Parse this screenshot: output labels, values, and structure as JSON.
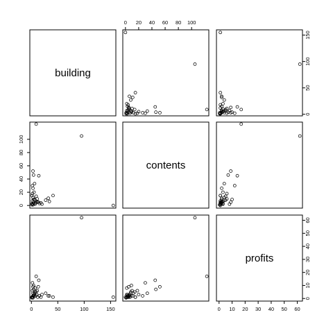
{
  "chart_data": {
    "type": "scatter",
    "variables": [
      "building",
      "contents",
      "profits"
    ],
    "ranges": {
      "building": [
        -3,
        160
      ],
      "contents": [
        -4,
        126
      ],
      "profits": [
        -2,
        64
      ]
    },
    "ticks": {
      "building": [
        0,
        50,
        100,
        150
      ],
      "contents": [
        0,
        20,
        40,
        60,
        80,
        100
      ],
      "profits": [
        0,
        10,
        20,
        30,
        40,
        50,
        60
      ]
    },
    "points": [
      {
        "building": 1,
        "contents": 1,
        "profits": 0.5
      },
      {
        "building": 2,
        "contents": 2,
        "profits": 1
      },
      {
        "building": 3,
        "contents": 1,
        "profits": 0.5
      },
      {
        "building": 1,
        "contents": 3,
        "profits": 1
      },
      {
        "building": 4,
        "contents": 5,
        "profits": 2
      },
      {
        "building": 2,
        "contents": 7,
        "profits": 1
      },
      {
        "building": 5,
        "contents": 3,
        "profits": 3
      },
      {
        "building": 6,
        "contents": 9,
        "profits": 2
      },
      {
        "building": 3,
        "contents": 12,
        "profits": 4
      },
      {
        "building": 8,
        "contents": 4,
        "profits": 2
      },
      {
        "building": 9,
        "contents": 14,
        "profits": 5
      },
      {
        "building": 10,
        "contents": 6,
        "profits": 3
      },
      {
        "building": 1,
        "contents": 15,
        "profits": 1
      },
      {
        "building": 2,
        "contents": 18,
        "profits": 6
      },
      {
        "building": 7,
        "contents": 2,
        "profits": 8
      },
      {
        "building": 12,
        "contents": 5,
        "profits": 1
      },
      {
        "building": 15,
        "contents": 3,
        "profits": 2
      },
      {
        "building": 4,
        "contents": 9,
        "profits": 10
      },
      {
        "building": 5,
        "contents": 20,
        "profits": 3
      },
      {
        "building": 3,
        "contents": 26,
        "profits": 2
      },
      {
        "building": 2,
        "contents": 30,
        "profits": 12
      },
      {
        "building": 6,
        "contents": 33,
        "profits": 4
      },
      {
        "building": 4,
        "contents": 46,
        "profits": 7
      },
      {
        "building": 3,
        "contents": 52,
        "profits": 9
      },
      {
        "building": 14,
        "contents": 45,
        "profits": 14
      },
      {
        "building": 9,
        "contents": 123,
        "profits": 17
      },
      {
        "building": 13,
        "contents": 5,
        "profits": 9
      },
      {
        "building": 18,
        "contents": 4,
        "profits": 1
      },
      {
        "building": 20,
        "contents": 2,
        "profits": 3
      },
      {
        "building": 27,
        "contents": 8,
        "profits": 4
      },
      {
        "building": 32,
        "contents": 11,
        "profits": 2
      },
      {
        "building": 41,
        "contents": 15,
        "profits": 1
      },
      {
        "building": 34,
        "contents": 6,
        "profits": 2
      },
      {
        "building": 11,
        "contents": 10,
        "profits": 6
      },
      {
        "building": 7,
        "contents": 8,
        "profits": 5
      },
      {
        "building": 95,
        "contents": 105,
        "profits": 62
      },
      {
        "building": 155,
        "contents": 0,
        "profits": 1
      }
    ]
  }
}
